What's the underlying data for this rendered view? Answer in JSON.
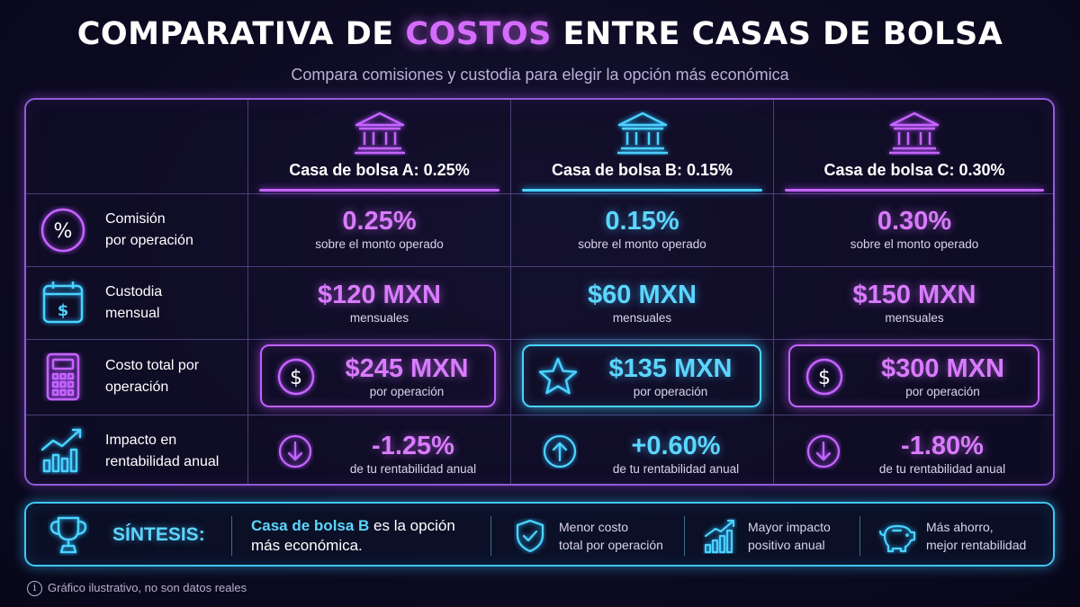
{
  "header": {
    "title_pre": "COMPARATIVA DE ",
    "title_accent": "COSTOS",
    "title_post": " ENTRE CASAS DE BOLSA",
    "subtitle": "Compara comisiones y custodia para elegir la opción más económica"
  },
  "columns": [
    {
      "name": "Casa de bolsa A: 0.25%",
      "icon": "bank-icon",
      "color": "#c564ff"
    },
    {
      "name": "Casa de bolsa B: 0.15%",
      "icon": "bank-icon",
      "color": "#4cd2ff"
    },
    {
      "name": "Casa de bolsa C: 0.30%",
      "icon": "bank-icon",
      "color": "#c564ff"
    }
  ],
  "rows": {
    "commission": {
      "label": [
        "Comisión",
        "por operación"
      ],
      "icon": "percent-icon",
      "values": [
        "0.25%",
        "0.15%",
        "0.30%"
      ],
      "sub": [
        "sobre el monto operado",
        "sobre el monto operado",
        "sobre el monto operado"
      ]
    },
    "custody": {
      "label": [
        "Custodia",
        "mensual"
      ],
      "icon": "calendar-dollar-icon",
      "values": [
        "$120 MXN",
        "$60 MXN",
        "$150 MXN"
      ],
      "sub": [
        "mensuales",
        "mensuales",
        "mensuales"
      ]
    },
    "total": {
      "label": [
        "Costo total por",
        "operación"
      ],
      "icon": "calculator-icon",
      "values": [
        "$245 MXN",
        "$135 MXN",
        "$300 MXN"
      ],
      "sub": [
        "por operación",
        "por operación",
        "por operación"
      ],
      "box_icons": [
        "dollar-coin-icon",
        "star-icon",
        "dollar-coin-icon"
      ]
    },
    "impact": {
      "label": [
        "Impacto en",
        "rentabilidad anual"
      ],
      "icon": "growth-chart-icon",
      "values": [
        "-1.25%",
        "+0.60%",
        "-1.80%"
      ],
      "sub": [
        "de tu rentabilidad anual",
        "de tu rentabilidad anual",
        "de tu rentabilidad anual"
      ],
      "arrow_icons": [
        "arrow-down-circle-icon",
        "arrow-up-circle-icon",
        "arrow-down-circle-icon"
      ]
    }
  },
  "summary": {
    "label": "SÍNTESIS:",
    "highlight": "Casa de bolsa B",
    "text_rest": " es la opción",
    "text_line2": "más económica.",
    "features": [
      {
        "icon": "shield-check-icon",
        "lines": [
          "Menor costo",
          "total por operación"
        ]
      },
      {
        "icon": "bar-chart-up-icon",
        "lines": [
          "Mayor impacto",
          "positivo anual"
        ]
      },
      {
        "icon": "piggy-bank-icon",
        "lines": [
          "Más ahorro,",
          "mejor rentabilidad"
        ]
      }
    ]
  },
  "footer": {
    "note": "Gráfico ilustrativo, no son datos reales"
  },
  "colors": {
    "purple": "#d97bff",
    "cyan": "#5cd6ff",
    "background": "#0d0b22"
  }
}
